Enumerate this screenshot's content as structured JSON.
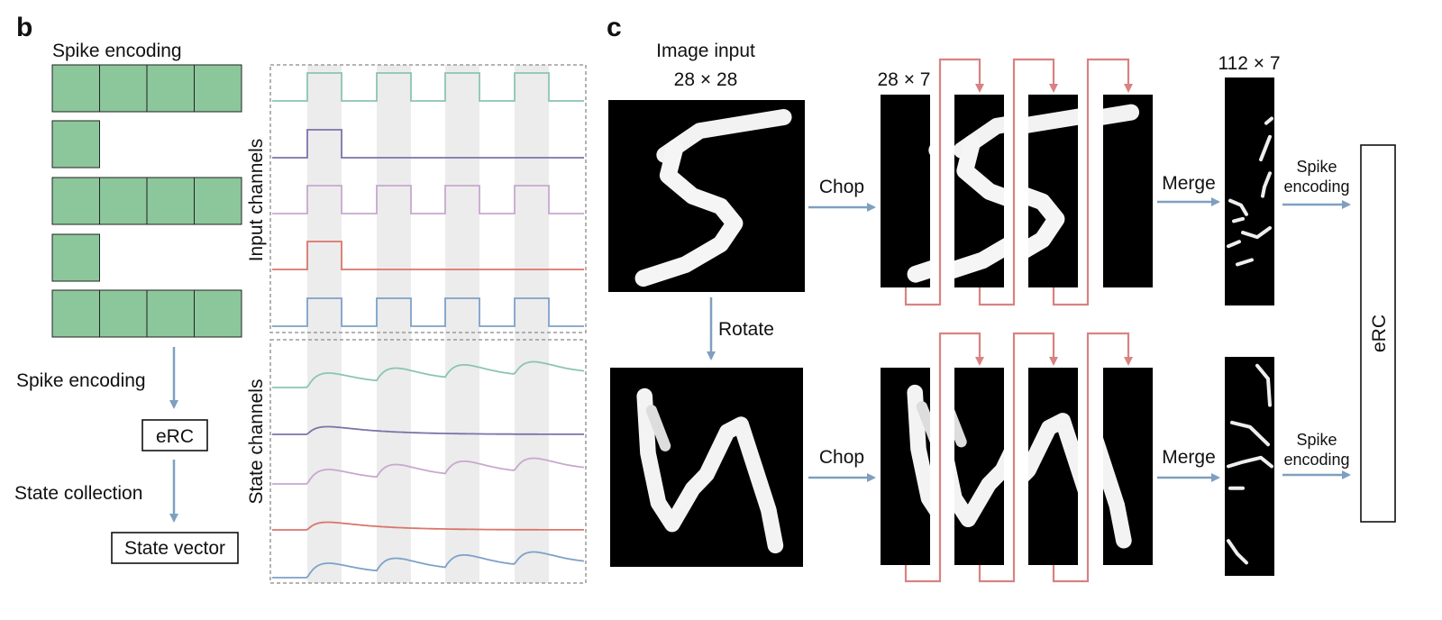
{
  "panel_b": {
    "letter": "b",
    "title": "Spike encoding",
    "spike_rows": [
      4,
      1,
      4,
      1,
      4
    ],
    "flow": {
      "step1": "Spike encoding",
      "box1": "eRC",
      "step2": "State collection",
      "box2": "State vector"
    },
    "input_axis_label": "Input channels",
    "state_axis_label": "State channels",
    "pulse_count": [
      4,
      1,
      4,
      1,
      4
    ],
    "colors": {
      "cell_fill": "#8cc79b",
      "arrow": "#7f9fbf",
      "dashed_border": "#888888",
      "band": "#ececec",
      "channels": [
        "#8cc4b4",
        "#7f72a8",
        "#c7a8cf",
        "#d9766a",
        "#7ea1c8"
      ]
    }
  },
  "panel_c": {
    "letter": "c",
    "image_input_label": "Image input",
    "image_input_size": "28 × 28",
    "chop_size": "28 × 7",
    "merge_size": "112 × 7",
    "chop_label_top": "Chop",
    "chop_label_bottom": "Chop",
    "rotate_label": "Rotate",
    "merge_label_top": "Merge",
    "merge_label_bottom": "Merge",
    "spike_label_top_1": "Spike",
    "spike_label_top_2": "encoding",
    "spike_label_bottom_1": "Spike",
    "spike_label_bottom_2": "encoding",
    "erc_label": "eRC",
    "colors": {
      "arrow": "#7f9fbf",
      "merge_line": "#d98282"
    },
    "digit_icon": "handwritten-digit-5"
  }
}
